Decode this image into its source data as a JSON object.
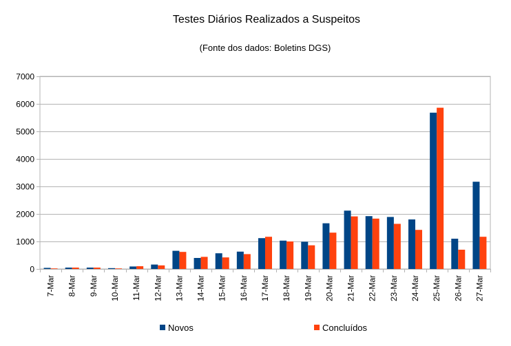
{
  "chart_data": {
    "type": "bar",
    "title": "Testes Diários Realizados a Suspeitos",
    "subtitle": "(Fonte dos dados: Boletins DGS)",
    "xlabel": "",
    "ylabel": "",
    "ylim": [
      0,
      7000
    ],
    "yticks": [
      0,
      1000,
      2000,
      3000,
      4000,
      5000,
      6000,
      7000
    ],
    "grid": true,
    "legend_position": "bottom",
    "categories": [
      "7-Mar",
      "8-Mar",
      "9-Mar",
      "10-Mar",
      "11-Mar",
      "12-Mar",
      "13-Mar",
      "14-Mar",
      "15-Mar",
      "16-Mar",
      "17-Mar",
      "18-Mar",
      "19-Mar",
      "20-Mar",
      "21-Mar",
      "22-Mar",
      "23-Mar",
      "24-Mar",
      "25-Mar",
      "26-Mar",
      "27-Mar"
    ],
    "series": [
      {
        "name": "Novos",
        "color": "#004586",
        "values": [
          40,
          50,
          50,
          30,
          90,
          160,
          660,
          400,
          570,
          630,
          1120,
          1030,
          990,
          1660,
          2120,
          1920,
          1890,
          1800,
          5680,
          1100,
          3170
        ]
      },
      {
        "name": "Concluídos",
        "color": "#ff420e",
        "values": [
          20,
          50,
          50,
          20,
          100,
          130,
          620,
          440,
          420,
          540,
          1170,
          1000,
          860,
          1320,
          1910,
          1830,
          1640,
          1420,
          5860,
          700,
          1170
        ]
      }
    ]
  }
}
